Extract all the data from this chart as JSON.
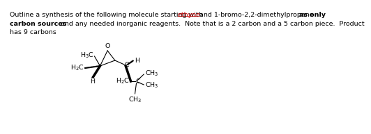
{
  "bg_color": "#ffffff",
  "text_color": "#000000",
  "font_size": 6.8,
  "line1_normal1": "Outline a synthesis of the following molecule starting with ",
  "line1_ethyne": "ethyne",
  "line1_normal2": " and 1-bromo-2,2-dimethylpropane ",
  "line1_bold": "as only",
  "line2_bold": "carbon sources",
  "line2_normal": " and any needed inorganic reagents.  Note that is a 2 carbon and a 5 carbon piece.  Product",
  "line3": "has 9 carbons",
  "ethyne_color": "#cc0000",
  "bold_color": "#000000"
}
